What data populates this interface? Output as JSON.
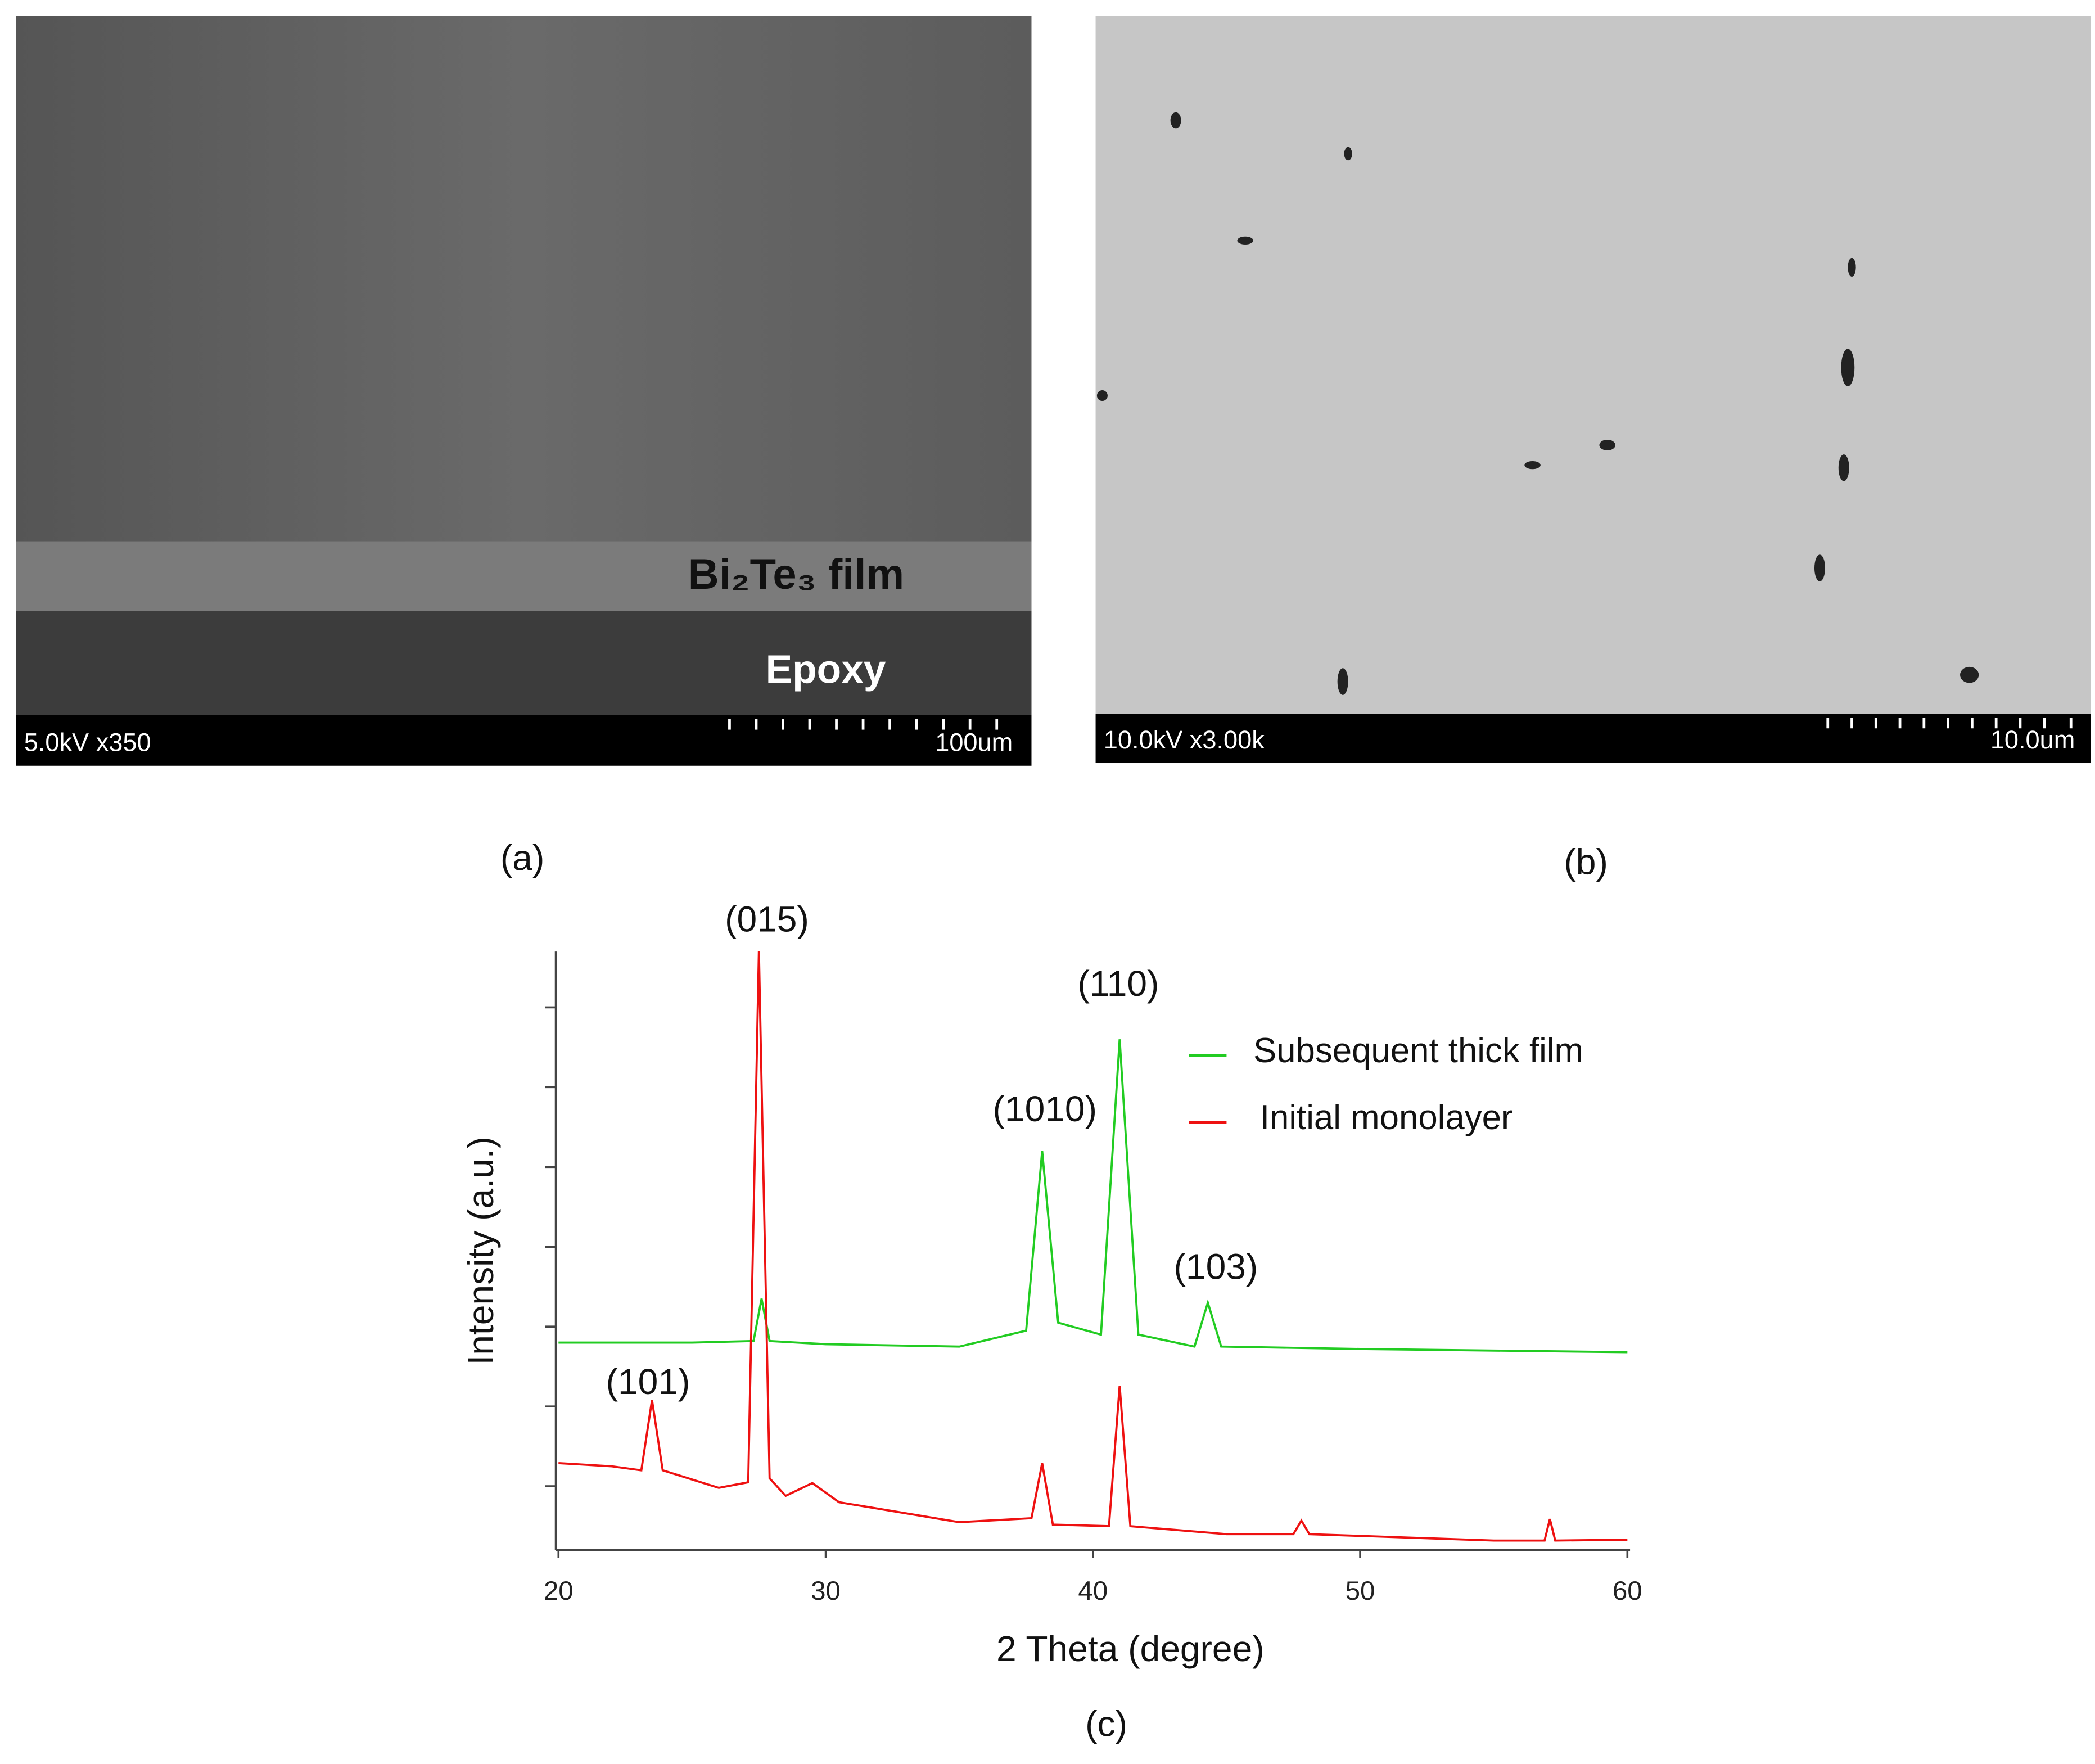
{
  "panels": {
    "a": {
      "label": "(a)",
      "info": "5.0kV x350",
      "scale": "100um",
      "film": "Bi₂Te₃ film",
      "substrate": "Epoxy"
    },
    "b": {
      "label": "(b)",
      "info": "10.0kV x3.00k",
      "scale": "10.0um"
    }
  },
  "chart_data": {
    "type": "line",
    "panel_label": "(c)",
    "xlabel": "2 Theta (degree)",
    "ylabel": "Intensity (a.u.)",
    "xlim": [
      20,
      60
    ],
    "xticks": [
      20,
      30,
      40,
      50,
      60
    ],
    "ylim": [
      0,
      7.5
    ],
    "yticks": [
      0.8,
      1.8,
      2.8,
      3.8,
      4.8,
      5.8,
      6.8
    ],
    "legend": "upper right",
    "annotations": [
      "(015)",
      "(110)",
      "(1010)",
      "(103)",
      "(101)"
    ],
    "series": [
      {
        "name": "Subsequent thick film",
        "color": "#22cc22",
        "x": [
          20,
          25,
          27.3,
          27.6,
          27.9,
          30,
          35,
          37.5,
          38.1,
          38.7,
          40.3,
          41.0,
          41.7,
          43.8,
          44.3,
          44.8,
          50,
          60
        ],
        "values": [
          2.6,
          2.6,
          2.62,
          3.15,
          2.62,
          2.58,
          2.55,
          2.75,
          5.0,
          2.85,
          2.7,
          6.4,
          2.7,
          2.55,
          3.1,
          2.55,
          2.52,
          2.48
        ]
      },
      {
        "name": "Initial monolayer",
        "color": "#ee1111",
        "x": [
          20,
          22,
          23.1,
          23.5,
          23.9,
          26,
          27.1,
          27.5,
          27.9,
          28.5,
          29.5,
          30.5,
          35,
          37.7,
          38.1,
          38.5,
          40.6,
          41.0,
          41.4,
          45,
          47.5,
          47.8,
          48.1,
          55,
          56.9,
          57.1,
          57.3,
          60
        ],
        "values": [
          1.09,
          1.05,
          1.0,
          1.88,
          1.0,
          0.78,
          0.85,
          7.5,
          0.9,
          0.68,
          0.84,
          0.6,
          0.35,
          0.4,
          1.09,
          0.32,
          0.3,
          2.06,
          0.3,
          0.2,
          0.2,
          0.37,
          0.2,
          0.12,
          0.12,
          0.39,
          0.12,
          0.13
        ]
      }
    ]
  }
}
